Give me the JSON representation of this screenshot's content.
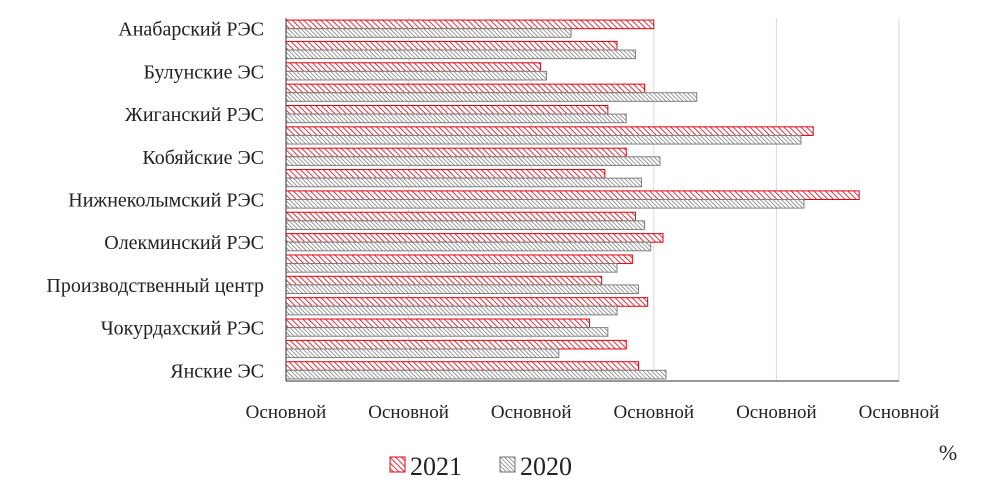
{
  "chart_data": {
    "type": "bar",
    "orientation": "horizontal",
    "unit_label": "%",
    "categories": [
      "Анабарский РЭС",
      "",
      "Булунские ЭС",
      "",
      "Жиганский РЭС",
      "",
      "Кобяйские ЭС",
      "",
      "Нижнеколымский РЭС",
      "",
      "Олекминский РЭС",
      "",
      "Производственный центр",
      "",
      "Чокурдахский РЭС",
      "",
      "Янские ЭС"
    ],
    "series": [
      {
        "name": "2021",
        "color": "#e3000f",
        "pattern": "diagonal-hatch",
        "values": [
          60.0,
          54.0,
          41.5,
          58.5,
          52.5,
          86.0,
          55.5,
          52.0,
          93.5,
          57.0,
          61.5,
          56.5,
          51.5,
          59.0,
          49.5,
          55.5,
          57.5
        ]
      },
      {
        "name": "2020",
        "color": "#7f7f7f",
        "pattern": "diagonal-hatch-dense",
        "values": [
          46.5,
          57.0,
          42.5,
          67.0,
          55.5,
          84.0,
          61.0,
          58.0,
          84.5,
          58.5,
          59.5,
          54.0,
          57.5,
          54.0,
          52.5,
          44.5,
          62.0
        ]
      }
    ],
    "xlim": [
      0,
      100
    ],
    "x_ticks": [
      0,
      20,
      40,
      60,
      80,
      100
    ],
    "x_tick_labels": [
      "Основной",
      "Основной",
      "Основной",
      "Основной",
      "Основной",
      "Основной"
    ],
    "grid": "vertical",
    "legend_position": "bottom"
  }
}
